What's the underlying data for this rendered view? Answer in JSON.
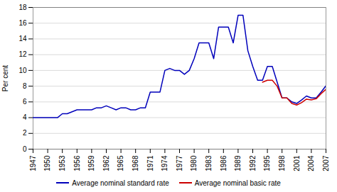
{
  "chart_data": {
    "type": "line",
    "title": "",
    "ylabel": "Per cent",
    "x": [
      1947,
      1948,
      1949,
      1950,
      1951,
      1952,
      1953,
      1954,
      1955,
      1956,
      1957,
      1958,
      1959,
      1960,
      1961,
      1962,
      1963,
      1964,
      1965,
      1966,
      1967,
      1968,
      1969,
      1970,
      1971,
      1972,
      1973,
      1974,
      1975,
      1976,
      1977,
      1978,
      1979,
      1980,
      1981,
      1982,
      1983,
      1984,
      1985,
      1986,
      1987,
      1988,
      1989,
      1990,
      1991,
      1992,
      1993,
      1994,
      1995,
      1996,
      1997,
      1998,
      1999,
      2000,
      2001,
      2002,
      2003,
      2004,
      2005,
      2006,
      2007
    ],
    "series": [
      {
        "name": "Average nominal standard rate",
        "color": "#0000bb",
        "values": [
          4.0,
          4.0,
          4.0,
          4.0,
          4.0,
          4.0,
          4.5,
          4.5,
          4.75,
          5.0,
          5.0,
          5.0,
          5.0,
          5.25,
          5.25,
          5.5,
          5.25,
          5.0,
          5.25,
          5.25,
          5.0,
          5.0,
          5.25,
          5.25,
          7.25,
          7.25,
          7.25,
          10.0,
          10.25,
          10.0,
          10.0,
          9.5,
          10.0,
          11.5,
          13.5,
          13.5,
          13.5,
          11.5,
          15.5,
          15.5,
          15.5,
          13.5,
          17.0,
          17.0,
          12.5,
          10.5,
          8.75,
          8.75,
          10.5,
          10.5,
          8.5,
          6.5,
          6.5,
          6.0,
          5.8,
          6.25,
          6.75,
          6.5,
          6.5,
          7.25,
          8.05
        ]
      },
      {
        "name": "Average nominal basic rate",
        "color": "#cc0000",
        "values": [
          null,
          null,
          null,
          null,
          null,
          null,
          null,
          null,
          null,
          null,
          null,
          null,
          null,
          null,
          null,
          null,
          null,
          null,
          null,
          null,
          null,
          null,
          null,
          null,
          null,
          null,
          null,
          null,
          null,
          null,
          null,
          null,
          null,
          null,
          null,
          null,
          null,
          null,
          null,
          null,
          null,
          null,
          null,
          null,
          null,
          null,
          null,
          8.5,
          8.75,
          8.75,
          8.0,
          6.5,
          6.5,
          5.8,
          5.6,
          5.9,
          6.35,
          6.25,
          6.4,
          7.05,
          7.6
        ]
      }
    ],
    "xlim": [
      1947,
      2007
    ],
    "xticks": [
      1947,
      1950,
      1953,
      1956,
      1959,
      1962,
      1965,
      1968,
      1971,
      1974,
      1977,
      1980,
      1983,
      1986,
      1989,
      1992,
      1995,
      1998,
      2001,
      2004,
      2007
    ],
    "ylim": [
      0,
      18
    ],
    "yticks": [
      0,
      2,
      4,
      6,
      8,
      10,
      12,
      14,
      16,
      18
    ],
    "grid": true,
    "legend": "bottom"
  }
}
